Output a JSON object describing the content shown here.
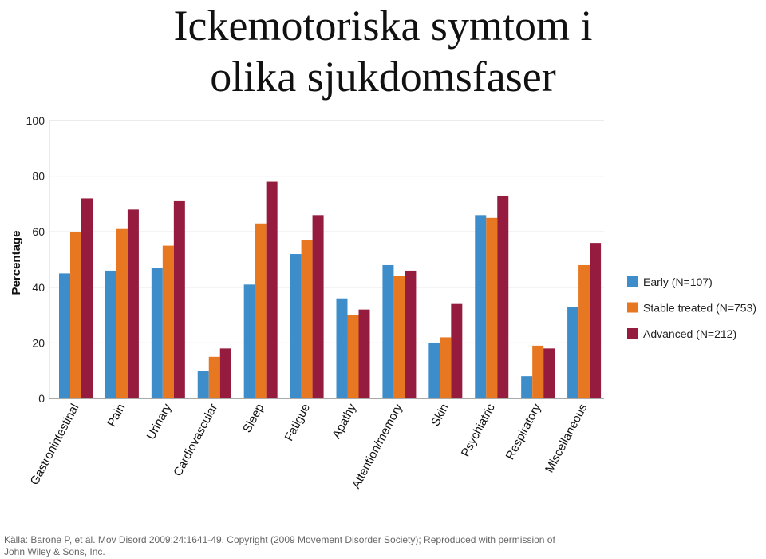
{
  "title_lines": [
    "Ickemotoriska symtom i",
    "olika sjukdomsfaser"
  ],
  "source_note": "Källa: Barone P, et al. Mov Disord 2009;24:1641-49. Copyright (2009 Movement Disorder Society); Reproduced with permission of John Wiley & Sons, Inc.",
  "chart_data": {
    "type": "bar",
    "title": "Ickemotoriska symtom i olika sjukdomsfaser",
    "ylabel": "Percentage",
    "xlabel": "",
    "y_ticks": [
      0,
      20,
      40,
      60,
      80,
      100
    ],
    "ylim": [
      0,
      100
    ],
    "grid": "horizontal",
    "legend_position": "right",
    "categories": [
      "Gastronintestinal",
      "Pain",
      "Urinary",
      "Cardiovascular",
      "Sleep",
      "Fatigue",
      "Apathy",
      "Attention/memory",
      "Skin",
      "Psychiatric",
      "Respiratory",
      "Miscellaneous"
    ],
    "series": [
      {
        "name": "Early (N=107)",
        "color": "#3E8DCB",
        "values": [
          45,
          46,
          47,
          10,
          41,
          52,
          36,
          48,
          20,
          66,
          8,
          33
        ]
      },
      {
        "name": "Stable treated (N=753)",
        "color": "#E87722",
        "values": [
          60,
          61,
          55,
          15,
          63,
          57,
          30,
          44,
          22,
          65,
          19,
          48
        ]
      },
      {
        "name": "Advanced (N=212)",
        "color": "#961C3F",
        "values": [
          72,
          68,
          71,
          18,
          78,
          66,
          32,
          46,
          34,
          73,
          18,
          56
        ]
      }
    ]
  }
}
